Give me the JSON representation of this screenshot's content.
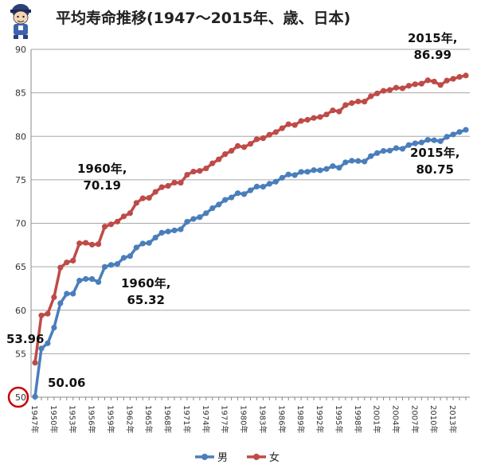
{
  "title": "平均寿命推移(1947～2015年、歳、日本)",
  "colors": {
    "male": "#4a7ebb",
    "female": "#be4b48",
    "circle": "#cc0000",
    "grid": "#a6a6a6"
  },
  "icons": {
    "mascot": "cartoon-mascot-icon"
  },
  "annotations": {
    "female_2015_year": "2015年,",
    "female_2015_value": "86.99",
    "male_2015_year": "2015年,",
    "male_2015_value": "80.75",
    "female_1960_year": "1960年,",
    "female_1960_value": "70.19",
    "male_1960_year": "1960年,",
    "male_1960_value": "65.32",
    "female_1947_value": "53.96",
    "male_1947_value": "50.06"
  },
  "chart_data": {
    "type": "line",
    "title": "平均寿命推移(1947～2015年、歳、日本)",
    "xlabel": "",
    "ylabel": "",
    "ylim": [
      50,
      90
    ],
    "yticks": [
      50,
      55,
      60,
      65,
      70,
      75,
      80,
      85,
      90
    ],
    "x_tick_labels": [
      "1947年",
      "1950年",
      "1953年",
      "1956年",
      "1959年",
      "1962年",
      "1965年",
      "1968年",
      "1971年",
      "1974年",
      "1977年",
      "1980年",
      "1983年",
      "1986年",
      "1989年",
      "1992年",
      "1995年",
      "1998年",
      "2001年",
      "2004年",
      "2007年",
      "2010年",
      "2013年"
    ],
    "grid": true,
    "legend_position": "bottom",
    "x": [
      1947,
      1948,
      1949,
      1950,
      1951,
      1952,
      1953,
      1954,
      1955,
      1956,
      1957,
      1958,
      1959,
      1960,
      1961,
      1962,
      1963,
      1964,
      1965,
      1966,
      1967,
      1968,
      1969,
      1970,
      1971,
      1972,
      1973,
      1974,
      1975,
      1976,
      1977,
      1978,
      1979,
      1980,
      1981,
      1982,
      1983,
      1984,
      1985,
      1986,
      1987,
      1988,
      1989,
      1990,
      1991,
      1992,
      1993,
      1994,
      1995,
      1996,
      1997,
      1998,
      1999,
      2000,
      2001,
      2002,
      2003,
      2004,
      2005,
      2006,
      2007,
      2008,
      2009,
      2010,
      2011,
      2012,
      2013,
      2014,
      2015
    ],
    "series": [
      {
        "name": "男",
        "values": [
          50.06,
          55.6,
          56.2,
          58.0,
          60.8,
          61.9,
          61.9,
          63.41,
          63.6,
          63.59,
          63.24,
          64.98,
          65.21,
          65.32,
          66.03,
          66.23,
          67.21,
          67.67,
          67.74,
          68.35,
          68.91,
          69.05,
          69.18,
          69.31,
          70.17,
          70.5,
          70.7,
          71.16,
          71.73,
          72.15,
          72.69,
          72.97,
          73.46,
          73.35,
          73.79,
          74.22,
          74.2,
          74.54,
          74.78,
          75.23,
          75.61,
          75.54,
          75.91,
          75.92,
          76.11,
          76.09,
          76.25,
          76.57,
          76.38,
          77.01,
          77.19,
          77.16,
          77.1,
          77.72,
          78.07,
          78.32,
          78.36,
          78.64,
          78.56,
          79.0,
          79.19,
          79.29,
          79.59,
          79.55,
          79.44,
          79.94,
          80.21,
          80.5,
          80.75
        ]
      },
      {
        "name": "女",
        "values": [
          53.96,
          59.4,
          59.6,
          61.5,
          64.9,
          65.5,
          65.7,
          67.69,
          67.75,
          67.54,
          67.6,
          69.61,
          69.88,
          70.19,
          70.79,
          71.16,
          72.34,
          72.87,
          72.92,
          73.61,
          74.15,
          74.3,
          74.67,
          74.66,
          75.58,
          75.94,
          76.02,
          76.31,
          76.89,
          77.35,
          77.95,
          78.33,
          78.89,
          78.76,
          79.13,
          79.66,
          79.78,
          80.18,
          80.48,
          80.93,
          81.39,
          81.3,
          81.77,
          81.9,
          82.11,
          82.22,
          82.51,
          82.98,
          82.85,
          83.59,
          83.82,
          84.01,
          83.99,
          84.6,
          84.93,
          85.23,
          85.33,
          85.59,
          85.52,
          85.81,
          85.99,
          86.05,
          86.44,
          86.3,
          85.9,
          86.41,
          86.61,
          86.83,
          86.99
        ]
      }
    ]
  },
  "legend": [
    {
      "label": "男",
      "color": "#4a7ebb"
    },
    {
      "label": "女",
      "color": "#be4b48"
    }
  ]
}
